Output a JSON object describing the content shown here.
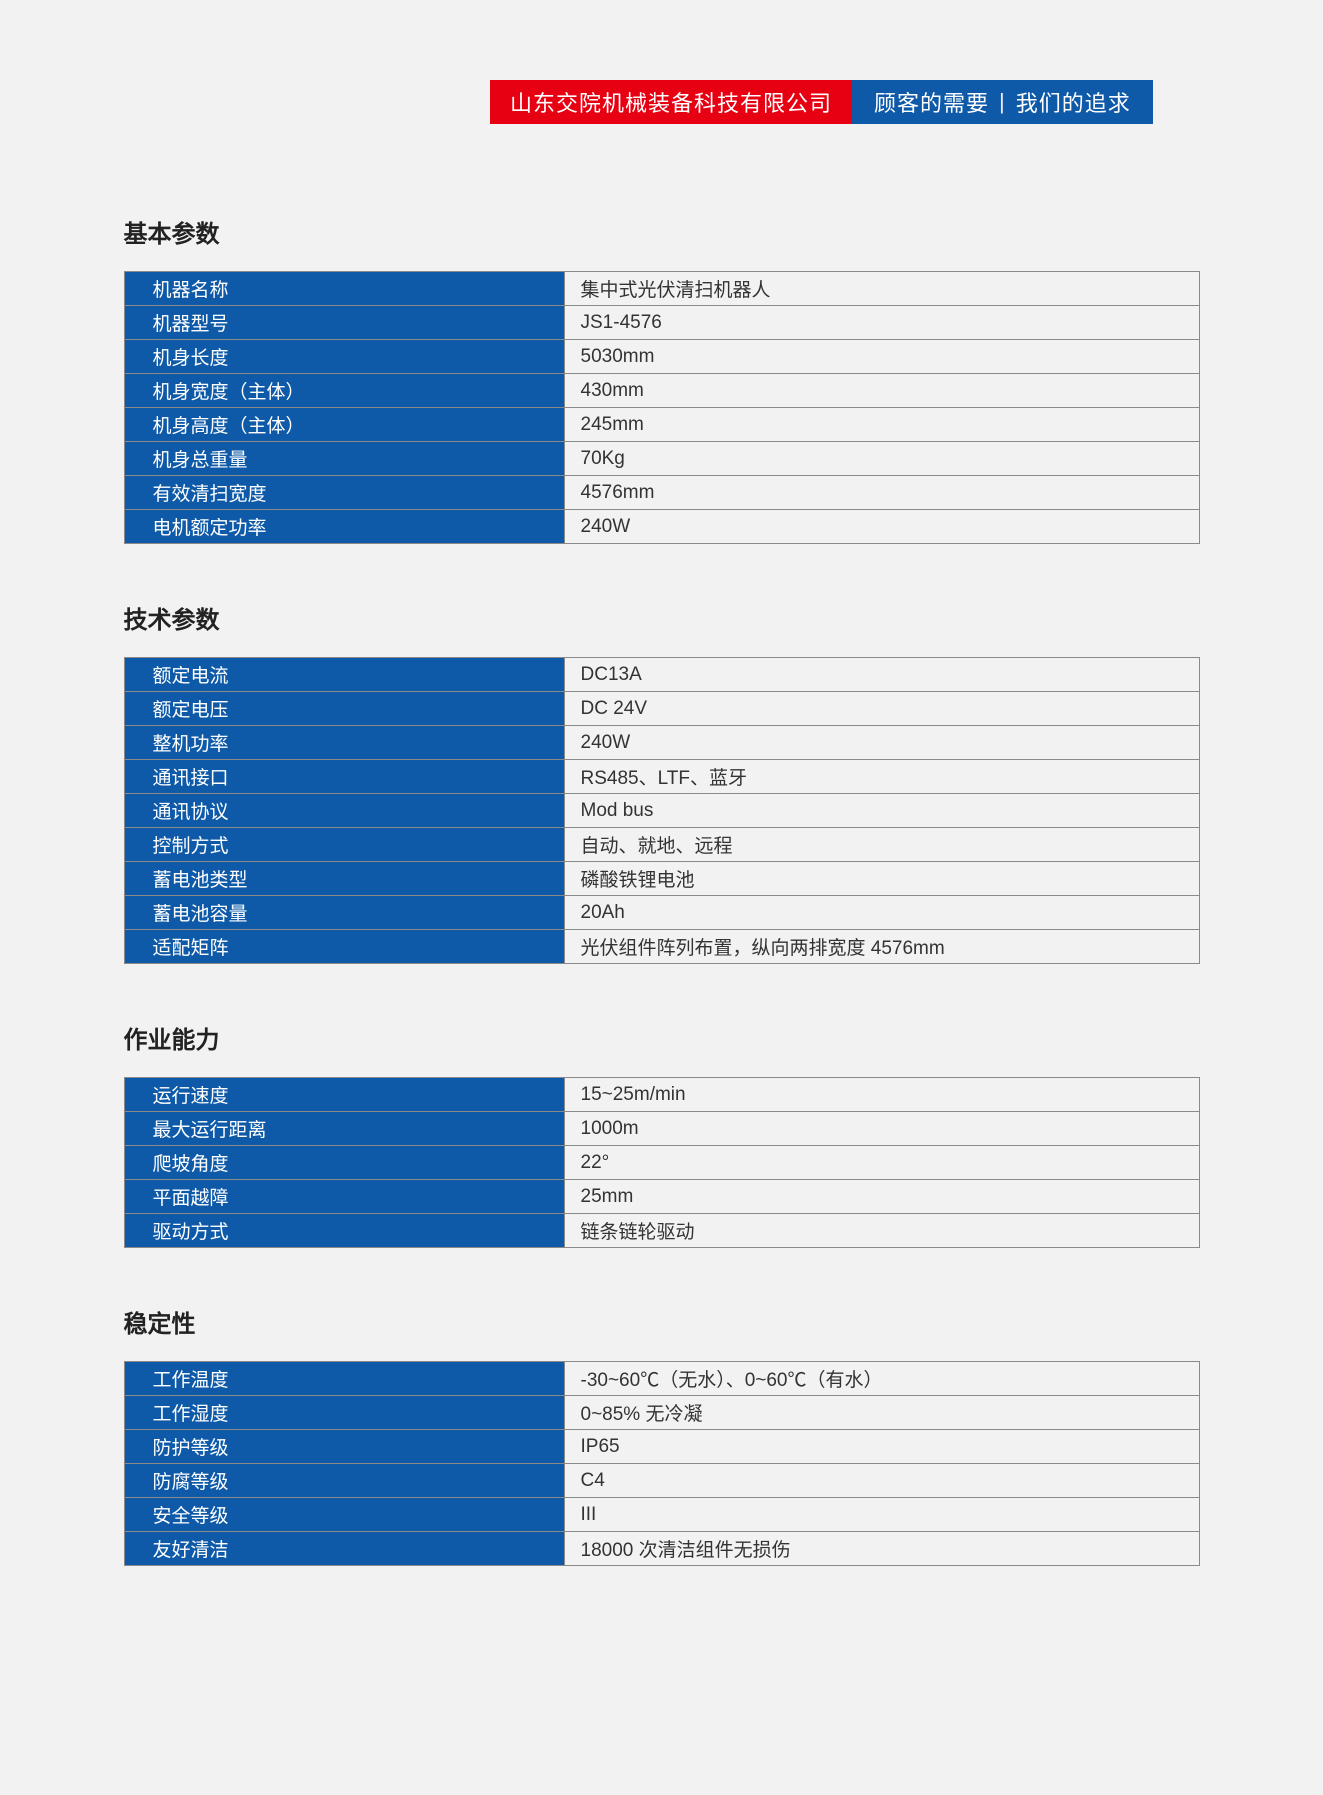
{
  "header": {
    "company": "山东交院机械装备科技有限公司",
    "slogan_left": "顾客的需要",
    "slogan_right": "我们的追求"
  },
  "colors": {
    "red": "#e60012",
    "blue": "#0e5aa8",
    "page_bg": "#f2f2f2",
    "border": "#8a8a8a",
    "text": "#222"
  },
  "sections": [
    {
      "title": "基本参数",
      "rows": [
        {
          "label": "机器名称",
          "value": "集中式光伏清扫机器人"
        },
        {
          "label": "机器型号",
          "value": "JS1-4576"
        },
        {
          "label": "机身长度",
          "value": "5030mm"
        },
        {
          "label": "机身宽度（主体）",
          "value": "430mm"
        },
        {
          "label": "机身高度（主体）",
          "value": "245mm"
        },
        {
          "label": "机身总重量",
          "value": "70Kg"
        },
        {
          "label": "有效清扫宽度",
          "value": "4576mm"
        },
        {
          "label": "电机额定功率",
          "value": "240W"
        }
      ]
    },
    {
      "title": "技术参数",
      "rows": [
        {
          "label": "额定电流",
          "value": "DC13A"
        },
        {
          "label": "额定电压",
          "value": "DC 24V"
        },
        {
          "label": "整机功率",
          "value": "240W"
        },
        {
          "label": "通讯接口",
          "value": "RS485、LTF、蓝牙"
        },
        {
          "label": "通讯协议",
          "value": "Mod bus"
        },
        {
          "label": "控制方式",
          "value": "自动、就地、远程"
        },
        {
          "label": "蓄电池类型",
          "value": "磷酸铁锂电池"
        },
        {
          "label": "蓄电池容量",
          "value": "20Ah"
        },
        {
          "label": "适配矩阵",
          "value": "光伏组件阵列布置，纵向两排宽度 4576mm"
        }
      ]
    },
    {
      "title": "作业能力",
      "rows": [
        {
          "label": "运行速度",
          "value": "15~25m/min"
        },
        {
          "label": "最大运行距离",
          "value": "1000m"
        },
        {
          "label": "爬坡角度",
          "value": "22°"
        },
        {
          "label": "平面越障",
          "value": "25mm"
        },
        {
          "label": "驱动方式",
          "value": "链条链轮驱动"
        }
      ]
    },
    {
      "title": "稳定性",
      "rows": [
        {
          "label": "工作温度",
          "value": "-30~60℃（无水）、0~60℃（有水）"
        },
        {
          "label": "工作湿度",
          "value": "0~85% 无冷凝"
        },
        {
          "label": "防护等级",
          "value": "IP65"
        },
        {
          "label": "防腐等级",
          "value": "C4"
        },
        {
          "label": "安全等级",
          "value": "III"
        },
        {
          "label": "友好清洁",
          "value": "18000 次清洁组件无损伤"
        }
      ]
    }
  ]
}
